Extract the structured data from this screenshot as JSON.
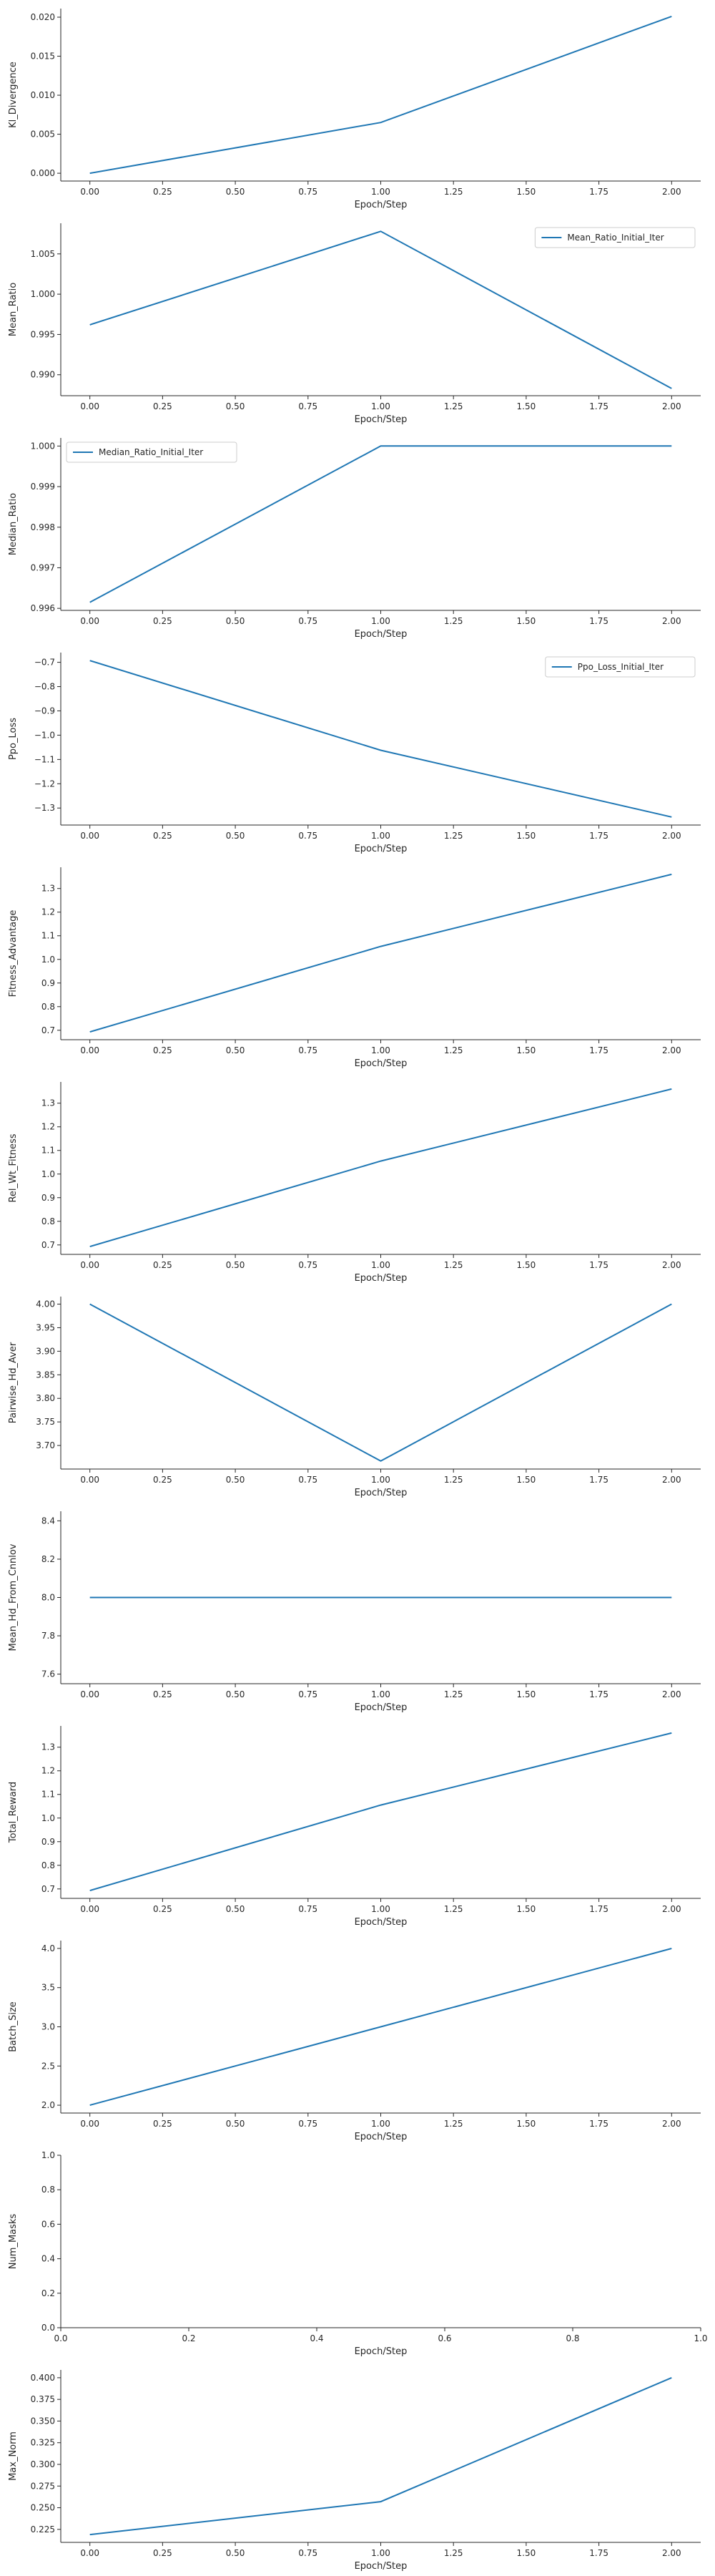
{
  "chart_data": [
    {
      "type": "line",
      "xlabel": "Epoch/Step",
      "ylabel": "Kl_Divergence",
      "x": [
        0,
        1,
        2
      ],
      "series": [
        {
          "values": [
            0.0,
            0.0065,
            0.0201
          ]
        }
      ],
      "xlim": [
        -0.1,
        2.1
      ],
      "ylim": [
        -0.001,
        0.0211
      ],
      "xticks": [
        0,
        0.25,
        0.5,
        0.75,
        1,
        1.25,
        1.5,
        1.75,
        2
      ],
      "xtick_labels": [
        "0.00",
        "0.25",
        "0.50",
        "0.75",
        "1.00",
        "1.25",
        "1.50",
        "1.75",
        "2.00"
      ],
      "yticks": [
        0,
        0.005,
        0.01,
        0.015,
        0.02
      ],
      "ytick_labels": [
        "0.000",
        "0.005",
        "0.010",
        "0.015",
        "0.020"
      ],
      "legend": null
    },
    {
      "type": "line",
      "xlabel": "Epoch/Step",
      "ylabel": "Mean_Ratio",
      "x": [
        0,
        1,
        2
      ],
      "series": [
        {
          "name": "Mean_Ratio_Initial_Iter",
          "values": [
            0.9962,
            1.0078,
            0.9883
          ]
        }
      ],
      "xlim": [
        -0.1,
        2.1
      ],
      "ylim": [
        0.9874,
        1.0088
      ],
      "xticks": [
        0,
        0.25,
        0.5,
        0.75,
        1,
        1.25,
        1.5,
        1.75,
        2
      ],
      "xtick_labels": [
        "0.00",
        "0.25",
        "0.50",
        "0.75",
        "1.00",
        "1.25",
        "1.50",
        "1.75",
        "2.00"
      ],
      "yticks": [
        0.99,
        0.995,
        1.0,
        1.005
      ],
      "ytick_labels": [
        "0.990",
        "0.995",
        "1.000",
        "1.005"
      ],
      "legend": "top-right"
    },
    {
      "type": "line",
      "xlabel": "Epoch/Step",
      "ylabel": "Median_Ratio",
      "x": [
        0,
        1,
        2
      ],
      "series": [
        {
          "name": "Median_Ratio_Initial_Iter",
          "values": [
            0.99615,
            1.0,
            1.0
          ]
        }
      ],
      "xlim": [
        -0.1,
        2.1
      ],
      "ylim": [
        0.99595,
        1.0002
      ],
      "xticks": [
        0,
        0.25,
        0.5,
        0.75,
        1,
        1.25,
        1.5,
        1.75,
        2
      ],
      "xtick_labels": [
        "0.00",
        "0.25",
        "0.50",
        "0.75",
        "1.00",
        "1.25",
        "1.50",
        "1.75",
        "2.00"
      ],
      "yticks": [
        0.996,
        0.997,
        0.998,
        0.999,
        1.0
      ],
      "ytick_labels": [
        "0.996",
        "0.997",
        "0.998",
        "0.999",
        "1.000"
      ],
      "legend": "top-left"
    },
    {
      "type": "line",
      "xlabel": "Epoch/Step",
      "ylabel": "Ppo_Loss",
      "x": [
        0,
        1,
        2
      ],
      "series": [
        {
          "name": "Ppo_Loss_Initial_Iter",
          "values": [
            -0.693,
            -1.062,
            -1.337
          ]
        }
      ],
      "xlim": [
        -0.1,
        2.1
      ],
      "ylim": [
        -1.37,
        -0.66
      ],
      "xticks": [
        0,
        0.25,
        0.5,
        0.75,
        1,
        1.25,
        1.5,
        1.75,
        2
      ],
      "xtick_labels": [
        "0.00",
        "0.25",
        "0.50",
        "0.75",
        "1.00",
        "1.25",
        "1.50",
        "1.75",
        "2.00"
      ],
      "yticks": [
        -1.3,
        -1.2,
        -1.1,
        -1.0,
        -0.9,
        -0.8,
        -0.7
      ],
      "ytick_labels": [
        "−1.3",
        "−1.2",
        "−1.1",
        "−1.0",
        "−0.9",
        "−0.8",
        "−0.7"
      ],
      "legend": "top-right"
    },
    {
      "type": "line",
      "xlabel": "Epoch/Step",
      "ylabel": "Fitness_Advantage",
      "x": [
        0,
        1,
        2
      ],
      "series": [
        {
          "values": [
            0.693,
            1.055,
            1.36
          ]
        }
      ],
      "xlim": [
        -0.1,
        2.1
      ],
      "ylim": [
        0.66,
        1.39
      ],
      "xticks": [
        0,
        0.25,
        0.5,
        0.75,
        1,
        1.25,
        1.5,
        1.75,
        2
      ],
      "xtick_labels": [
        "0.00",
        "0.25",
        "0.50",
        "0.75",
        "1.00",
        "1.25",
        "1.50",
        "1.75",
        "2.00"
      ],
      "yticks": [
        0.7,
        0.8,
        0.9,
        1.0,
        1.1,
        1.2,
        1.3
      ],
      "ytick_labels": [
        "0.7",
        "0.8",
        "0.9",
        "1.0",
        "1.1",
        "1.2",
        "1.3"
      ],
      "legend": null
    },
    {
      "type": "line",
      "xlabel": "Epoch/Step",
      "ylabel": "Rel_Wt_Fitness",
      "x": [
        0,
        1,
        2
      ],
      "series": [
        {
          "values": [
            0.693,
            1.055,
            1.36
          ]
        }
      ],
      "xlim": [
        -0.1,
        2.1
      ],
      "ylim": [
        0.66,
        1.39
      ],
      "xticks": [
        0,
        0.25,
        0.5,
        0.75,
        1,
        1.25,
        1.5,
        1.75,
        2
      ],
      "xtick_labels": [
        "0.00",
        "0.25",
        "0.50",
        "0.75",
        "1.00",
        "1.25",
        "1.50",
        "1.75",
        "2.00"
      ],
      "yticks": [
        0.7,
        0.8,
        0.9,
        1.0,
        1.1,
        1.2,
        1.3
      ],
      "ytick_labels": [
        "0.7",
        "0.8",
        "0.9",
        "1.0",
        "1.1",
        "1.2",
        "1.3"
      ],
      "legend": null
    },
    {
      "type": "line",
      "xlabel": "Epoch/Step",
      "ylabel": "Pairwise_Hd_Aver",
      "x": [
        0,
        1,
        2
      ],
      "series": [
        {
          "values": [
            4.0,
            3.667,
            4.0
          ]
        }
      ],
      "xlim": [
        -0.1,
        2.1
      ],
      "ylim": [
        3.65,
        4.016
      ],
      "xticks": [
        0,
        0.25,
        0.5,
        0.75,
        1,
        1.25,
        1.5,
        1.75,
        2
      ],
      "xtick_labels": [
        "0.00",
        "0.25",
        "0.50",
        "0.75",
        "1.00",
        "1.25",
        "1.50",
        "1.75",
        "2.00"
      ],
      "yticks": [
        3.7,
        3.75,
        3.8,
        3.85,
        3.9,
        3.95,
        4.0
      ],
      "ytick_labels": [
        "3.70",
        "3.75",
        "3.80",
        "3.85",
        "3.90",
        "3.95",
        "4.00"
      ],
      "legend": null
    },
    {
      "type": "line",
      "xlabel": "Epoch/Step",
      "ylabel": "Mean_Hd_From_Cnnlov",
      "x": [
        0,
        1,
        2
      ],
      "series": [
        {
          "values": [
            8.0,
            8.0,
            8.0
          ]
        }
      ],
      "xlim": [
        -0.1,
        2.1
      ],
      "ylim": [
        7.55,
        8.45
      ],
      "xticks": [
        0,
        0.25,
        0.5,
        0.75,
        1,
        1.25,
        1.5,
        1.75,
        2
      ],
      "xtick_labels": [
        "0.00",
        "0.25",
        "0.50",
        "0.75",
        "1.00",
        "1.25",
        "1.50",
        "1.75",
        "2.00"
      ],
      "yticks": [
        7.6,
        7.8,
        8.0,
        8.2,
        8.4
      ],
      "ytick_labels": [
        "7.6",
        "7.8",
        "8.0",
        "8.2",
        "8.4"
      ],
      "legend": null
    },
    {
      "type": "line",
      "xlabel": "Epoch/Step",
      "ylabel": "Total_Reward",
      "x": [
        0,
        1,
        2
      ],
      "series": [
        {
          "values": [
            0.693,
            1.055,
            1.36
          ]
        }
      ],
      "xlim": [
        -0.1,
        2.1
      ],
      "ylim": [
        0.66,
        1.39
      ],
      "xticks": [
        0,
        0.25,
        0.5,
        0.75,
        1,
        1.25,
        1.5,
        1.75,
        2
      ],
      "xtick_labels": [
        "0.00",
        "0.25",
        "0.50",
        "0.75",
        "1.00",
        "1.25",
        "1.50",
        "1.75",
        "2.00"
      ],
      "yticks": [
        0.7,
        0.8,
        0.9,
        1.0,
        1.1,
        1.2,
        1.3
      ],
      "ytick_labels": [
        "0.7",
        "0.8",
        "0.9",
        "1.0",
        "1.1",
        "1.2",
        "1.3"
      ],
      "legend": null
    },
    {
      "type": "line",
      "xlabel": "Epoch/Step",
      "ylabel": "Batch_Size",
      "x": [
        0,
        1,
        2
      ],
      "series": [
        {
          "values": [
            2.0,
            3.0,
            4.0
          ]
        }
      ],
      "xlim": [
        -0.1,
        2.1
      ],
      "ylim": [
        1.9,
        4.1
      ],
      "xticks": [
        0,
        0.25,
        0.5,
        0.75,
        1,
        1.25,
        1.5,
        1.75,
        2
      ],
      "xtick_labels": [
        "0.00",
        "0.25",
        "0.50",
        "0.75",
        "1.00",
        "1.25",
        "1.50",
        "1.75",
        "2.00"
      ],
      "yticks": [
        2.0,
        2.5,
        3.0,
        3.5,
        4.0
      ],
      "ytick_labels": [
        "2.0",
        "2.5",
        "3.0",
        "3.5",
        "4.0"
      ],
      "legend": null
    },
    {
      "type": "line",
      "xlabel": "Epoch/Step",
      "ylabel": "Num_Masks",
      "x": [],
      "series": [],
      "xlim": [
        0,
        1
      ],
      "ylim": [
        0,
        1
      ],
      "xticks": [
        0,
        0.2,
        0.4,
        0.6,
        0.8,
        1.0
      ],
      "xtick_labels": [
        "0.0",
        "0.2",
        "0.4",
        "0.6",
        "0.8",
        "1.0"
      ],
      "yticks": [
        0,
        0.2,
        0.4,
        0.6,
        0.8,
        1.0
      ],
      "ytick_labels": [
        "0.0",
        "0.2",
        "0.4",
        "0.6",
        "0.8",
        "1.0"
      ],
      "legend": null
    },
    {
      "type": "line",
      "xlabel": "Epoch/Step",
      "ylabel": "Max_Norm",
      "x": [
        0,
        1,
        2
      ],
      "series": [
        {
          "values": [
            0.219,
            0.257,
            0.4
          ]
        }
      ],
      "xlim": [
        -0.1,
        2.1
      ],
      "ylim": [
        0.21,
        0.409
      ],
      "xticks": [
        0,
        0.25,
        0.5,
        0.75,
        1,
        1.25,
        1.5,
        1.75,
        2
      ],
      "xtick_labels": [
        "0.00",
        "0.25",
        "0.50",
        "0.75",
        "1.00",
        "1.25",
        "1.50",
        "1.75",
        "2.00"
      ],
      "yticks": [
        0.225,
        0.25,
        0.275,
        0.3,
        0.325,
        0.35,
        0.375,
        0.4
      ],
      "ytick_labels": [
        "0.225",
        "0.250",
        "0.275",
        "0.300",
        "0.325",
        "0.350",
        "0.375",
        "0.400"
      ],
      "legend": null
    }
  ],
  "colors": {
    "line": "#1f77b4",
    "axis": "#262626",
    "legend_border": "#cccccc"
  }
}
